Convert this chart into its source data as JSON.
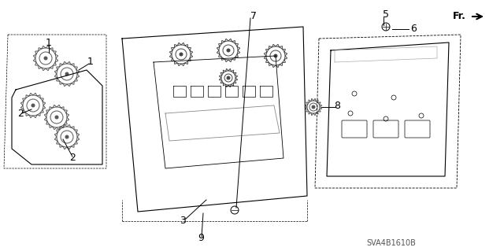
{
  "bg_color": "#ffffff",
  "line_color": "#000000",
  "part_color": "#888888",
  "title_text": "SVA4B1610B",
  "fr_label": "Fr.",
  "label_fontsize": 9,
  "part_numbers": [
    "1",
    "1",
    "2",
    "2",
    "3",
    "5",
    "6",
    "7",
    "8",
    "9"
  ]
}
